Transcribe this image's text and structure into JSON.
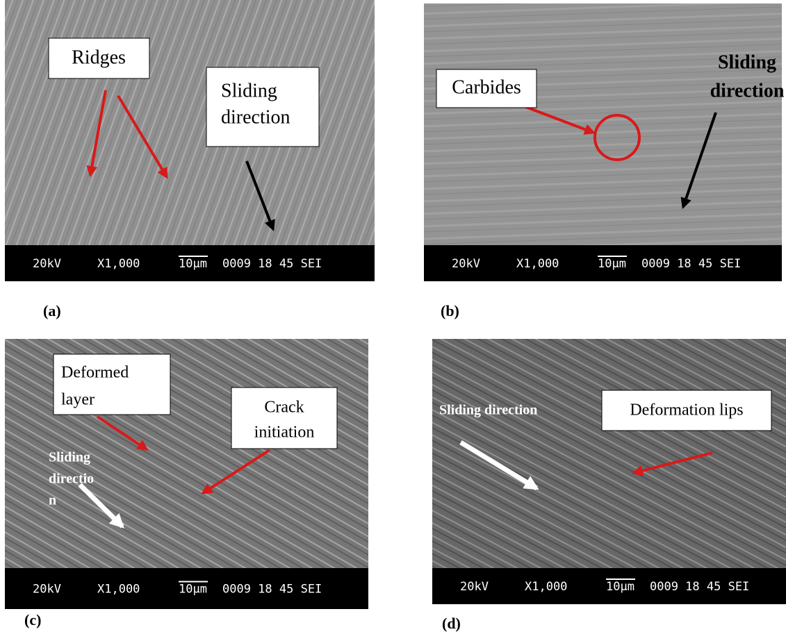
{
  "panels": [
    {
      "label": "(a)",
      "annotations": [
        {
          "lines": [
            "Ridges"
          ]
        },
        {
          "lines": [
            "Sliding",
            "direction"
          ]
        }
      ],
      "info_bar": {
        "voltage": "20kV",
        "magnification": "X1,000",
        "scale": "10µm",
        "info": "0009 18 45 SEI"
      }
    },
    {
      "label": "(b)",
      "annotations": [
        {
          "lines": [
            "Carbides"
          ]
        },
        {
          "lines": [
            "Sliding",
            "direction"
          ]
        }
      ],
      "info_bar": {
        "voltage": "20kV",
        "magnification": "X1,000",
        "scale": "10µm",
        "info": "0009 18 45 SEI"
      }
    },
    {
      "label": "(c)",
      "annotations": [
        {
          "lines": [
            "Deformed",
            "layer"
          ]
        },
        {
          "lines": [
            "Crack",
            "initiation"
          ]
        },
        {
          "lines": [
            "Sliding",
            "directio",
            "n"
          ]
        }
      ],
      "info_bar": {
        "voltage": "20kV",
        "magnification": "X1,000",
        "scale": "10µm",
        "info": "0009 18 45 SEI"
      }
    },
    {
      "label": "(d)",
      "annotations": [
        {
          "lines": [
            "Sliding direction"
          ]
        },
        {
          "lines": [
            "Deformation lips"
          ]
        }
      ],
      "info_bar": {
        "voltage": "20kV",
        "magnification": "X1,000",
        "scale": "10µm",
        "info": "0009 18 45 SEI"
      }
    }
  ]
}
